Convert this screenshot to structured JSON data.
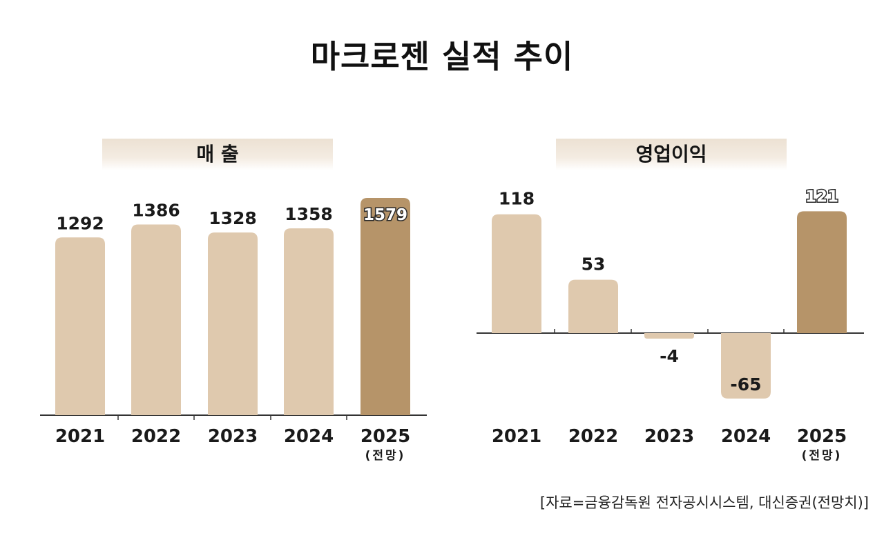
{
  "title": "마크로젠 실적 추이",
  "source": "[자료=금융감독원 전자공시시스템, 대신증권(전망치)]",
  "colors": {
    "bar": "#dfc9ae",
    "highlight": "#b69469",
    "axis": "#333333"
  },
  "chart_data": [
    {
      "type": "bar",
      "title": "매 출",
      "categories": [
        "2021",
        "2022",
        "2023",
        "2024",
        "2025"
      ],
      "category_notes": [
        "",
        "",
        "",
        "",
        "(전망)"
      ],
      "values": [
        1292,
        1386,
        1328,
        1358,
        1579
      ],
      "value_labels": [
        "1292",
        "1386",
        "1328",
        "1358",
        "1579"
      ],
      "highlight_index": 4,
      "ylim": [
        0,
        1579
      ]
    },
    {
      "type": "bar",
      "title": "영업이익",
      "categories": [
        "2021",
        "2022",
        "2023",
        "2024",
        "2025"
      ],
      "category_notes": [
        "",
        "",
        "",
        "",
        "(전망)"
      ],
      "values": [
        118,
        53,
        -4,
        -65,
        121
      ],
      "value_labels": [
        "118",
        "53",
        "-4",
        "-65",
        "121"
      ],
      "highlight_index": 4,
      "ylim": [
        -65,
        121
      ]
    }
  ]
}
